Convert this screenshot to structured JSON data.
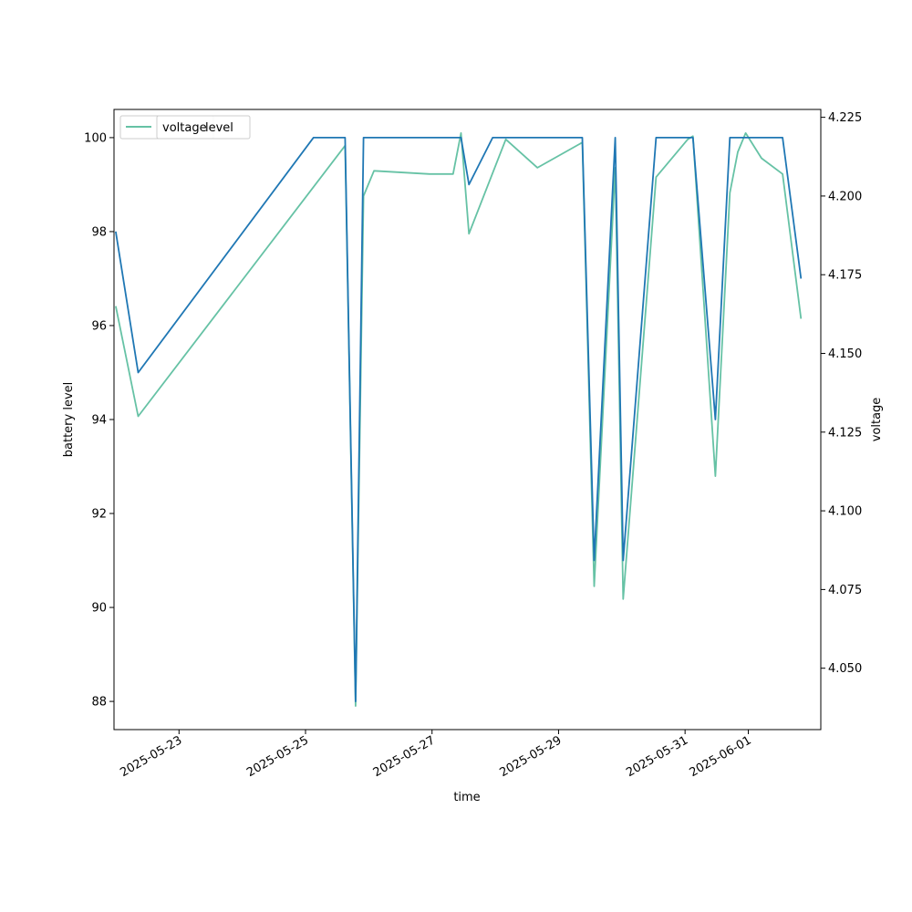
{
  "chart_data": {
    "type": "line",
    "xlabel": "time",
    "ylabel_left": "battery level",
    "ylabel_right": "voltage",
    "xlim": [
      "2025-05-21T23:20",
      "2025-06-02T03:30"
    ],
    "ylim_left": [
      87.4,
      100.6
    ],
    "ylim_right": [
      4.0305,
      4.2275
    ],
    "x_ticks": [
      "2025-05-23",
      "2025-05-25",
      "2025-05-27",
      "2025-05-29",
      "2025-05-31",
      "2025-06-01"
    ],
    "y_ticks_left": [
      "88",
      "90",
      "92",
      "94",
      "96",
      "98",
      "100"
    ],
    "y_ticks_right": [
      "4.050",
      "4.075",
      "4.100",
      "4.125",
      "4.150",
      "4.175",
      "4.200",
      "4.225"
    ],
    "legend": {
      "placement": "upper-left",
      "entries": [
        "voltage",
        "level"
      ]
    },
    "series": [
      {
        "name": "level",
        "axis": "left",
        "color": "#1f77b4",
        "points": [
          [
            "2025-05-22T00:00",
            98
          ],
          [
            "2025-05-22T08:30",
            95
          ],
          [
            "2025-05-25T03:00",
            100
          ],
          [
            "2025-05-25T15:00",
            100
          ],
          [
            "2025-05-25T19:00",
            88
          ],
          [
            "2025-05-25T22:00",
            100
          ],
          [
            "2025-05-27T11:00",
            100
          ],
          [
            "2025-05-27T14:00",
            99
          ],
          [
            "2025-05-27T23:00",
            100
          ],
          [
            "2025-05-29T09:00",
            100
          ],
          [
            "2025-05-29T13:30",
            91
          ],
          [
            "2025-05-29T21:30",
            100
          ],
          [
            "2025-05-30T00:30",
            91
          ],
          [
            "2025-05-30T13:00",
            100
          ],
          [
            "2025-05-31T03:00",
            100
          ],
          [
            "2025-05-31T11:30",
            94
          ],
          [
            "2025-05-31T17:00",
            100
          ],
          [
            "2025-06-01T13:00",
            100
          ],
          [
            "2025-06-01T20:00",
            97
          ]
        ]
      },
      {
        "name": "voltage",
        "axis": "right",
        "color": "#66c2a5",
        "points": [
          [
            "2025-05-22T00:00",
            4.165
          ],
          [
            "2025-05-22T08:30",
            4.13
          ],
          [
            "2025-05-25T15:00",
            4.216
          ],
          [
            "2025-05-25T19:00",
            4.038
          ],
          [
            "2025-05-25T22:00",
            4.2
          ],
          [
            "2025-05-26T02:00",
            4.208
          ],
          [
            "2025-05-26T23:00",
            4.207
          ],
          [
            "2025-05-27T08:00",
            4.207
          ],
          [
            "2025-05-27T11:00",
            4.22
          ],
          [
            "2025-05-27T14:00",
            4.188
          ],
          [
            "2025-05-28T04:00",
            4.218
          ],
          [
            "2025-05-28T16:00",
            4.209
          ],
          [
            "2025-05-29T09:00",
            4.217
          ],
          [
            "2025-05-29T13:30",
            4.076
          ],
          [
            "2025-05-29T21:30",
            4.209
          ],
          [
            "2025-05-30T00:30",
            4.072
          ],
          [
            "2025-05-30T13:00",
            4.206
          ],
          [
            "2025-05-31T01:00",
            4.218
          ],
          [
            "2025-05-31T03:00",
            4.219
          ],
          [
            "2025-05-31T11:30",
            4.111
          ],
          [
            "2025-05-31T17:00",
            4.201
          ],
          [
            "2025-05-31T20:00",
            4.214
          ],
          [
            "2025-05-31T23:00",
            4.22
          ],
          [
            "2025-06-01T05:00",
            4.212
          ],
          [
            "2025-06-01T13:00",
            4.207
          ],
          [
            "2025-06-01T20:00",
            4.161
          ]
        ]
      }
    ]
  }
}
